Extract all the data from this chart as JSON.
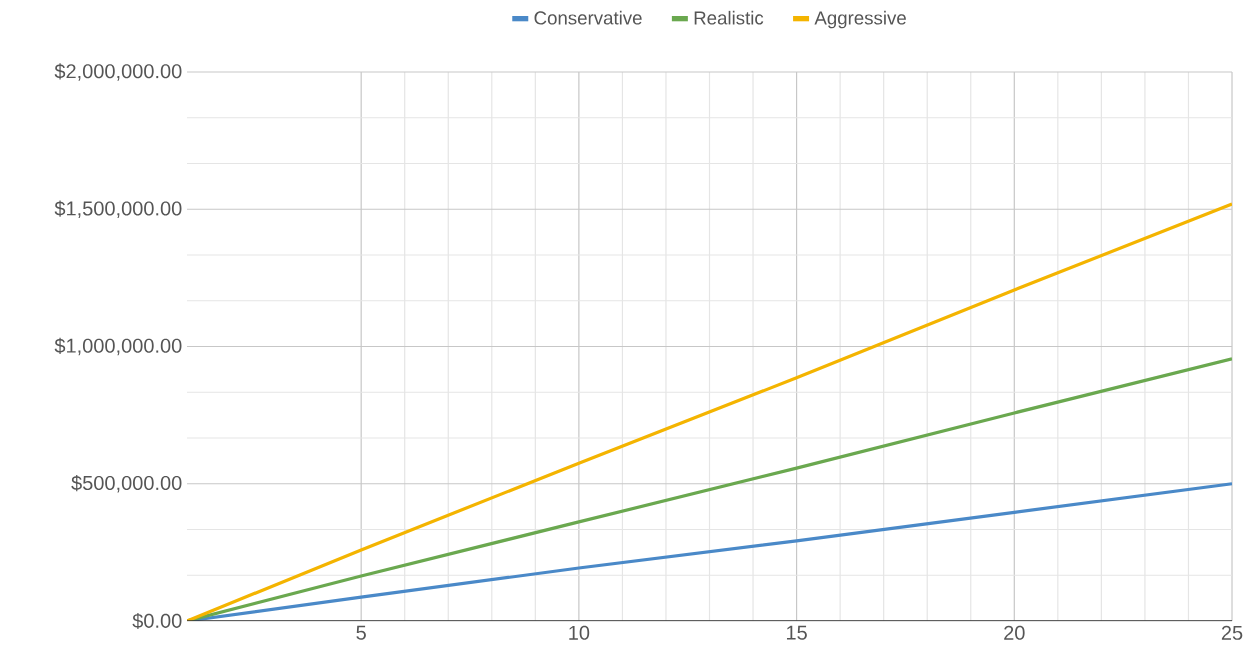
{
  "chart_data": {
    "type": "line",
    "x": [
      1,
      5,
      10,
      15,
      20,
      25
    ],
    "series": [
      {
        "name": "Conservative",
        "color": "#4a89c8",
        "values": [
          0,
          87000,
          193000,
          292000,
          396000,
          500000
        ]
      },
      {
        "name": "Realistic",
        "color": "#6aa84f",
        "values": [
          0,
          164000,
          361000,
          557000,
          758000,
          955000
        ]
      },
      {
        "name": "Aggressive",
        "color": "#f4b400",
        "values": [
          0,
          259000,
          575000,
          886000,
          1206000,
          1519000
        ]
      }
    ],
    "xlim": [
      1,
      25
    ],
    "xticks": [
      5,
      10,
      15,
      20,
      25
    ],
    "ylim": [
      0,
      2000000
    ],
    "yticks": [
      {
        "value": 0,
        "label": "$0.00"
      },
      {
        "value": 500000,
        "label": "$500,000.00"
      },
      {
        "value": 1000000,
        "label": "$1,000,000.00"
      },
      {
        "value": 1500000,
        "label": "$1,500,000.00"
      },
      {
        "value": 2000000,
        "label": "$2,000,000.00"
      }
    ],
    "grid": true,
    "legend": "top",
    "marker": "none",
    "line_style": "solid"
  }
}
